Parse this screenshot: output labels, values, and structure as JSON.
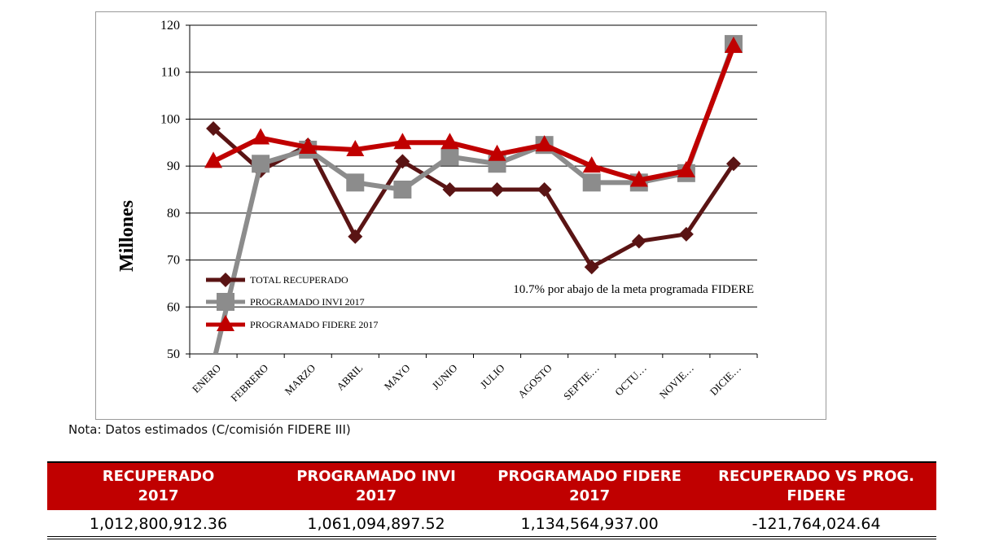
{
  "chart_data": {
    "type": "line",
    "categories": [
      "ENERO",
      "FEBRERO",
      "MARZO",
      "ABRIL",
      "MAYO",
      "JUNIO",
      "JULIO",
      "AGOSTO",
      "SEPTIE…",
      "OCTU…",
      "NOVIE…",
      "DICIE…"
    ],
    "ylabel": "Millones",
    "ylim": [
      50,
      120
    ],
    "yticks": [
      50,
      60,
      70,
      80,
      90,
      100,
      110,
      120
    ],
    "grid": true,
    "legend_position": "bottom-left inside plot",
    "annotation": "10.7% por abajo de la meta programada FIDERE",
    "series": [
      {
        "name": "TOTAL RECUPERADO",
        "color": "#5a1414",
        "marker": "diamond",
        "values": [
          98,
          89,
          94.5,
          75,
          91,
          85,
          85,
          85,
          68.5,
          74,
          75.5,
          90.5
        ]
      },
      {
        "name": "PROGRAMADO INVI 2017",
        "color": "#8c8c8c",
        "marker": "square",
        "values": [
          48,
          90.5,
          93.5,
          86.5,
          85,
          92,
          90.5,
          94.5,
          86.5,
          86.5,
          88.5,
          116
        ]
      },
      {
        "name": "PROGRAMADO FIDERE 2017",
        "color": "#c00000",
        "marker": "triangle",
        "values": [
          91,
          96,
          94,
          93.5,
          95,
          95,
          92.5,
          94.5,
          90,
          87,
          89,
          115.5
        ]
      }
    ]
  },
  "note": "Nota: Datos estimados (C/comisión FIDERE III)",
  "table": {
    "headers": [
      [
        "RECUPERADO",
        "2017"
      ],
      [
        "PROGRAMADO INVI",
        "2017"
      ],
      [
        "PROGRAMADO FIDERE",
        "2017"
      ],
      [
        "RECUPERADO VS PROG. FIDERE",
        ""
      ]
    ],
    "values": [
      "1,012,800,912.36",
      "1,061,094,897.52",
      "1,134,564,937.00",
      "-121,764,024.64"
    ]
  }
}
